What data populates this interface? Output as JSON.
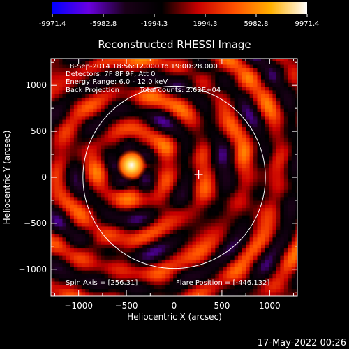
{
  "chart_data": {
    "type": "heatmap",
    "title": "Reconstructed RHESSI Image",
    "xlabel": "Heliocentric X (arcsec)",
    "ylabel": "Heliocentric Y (arcsec)",
    "xlim": [
      -1290,
      1290
    ],
    "ylim": [
      -1290,
      1290
    ],
    "xticks": [
      -1000,
      -500,
      0,
      500,
      1000
    ],
    "yticks": [
      -1000,
      -500,
      0,
      500,
      1000
    ],
    "colorbar": {
      "min": -9971.4,
      "max": 9971.4,
      "tick_values": [
        -9971.4,
        -5982.8,
        -1994.3,
        1994.3,
        5982.8,
        9971.4
      ],
      "tick_labels": [
        "-9971.4",
        "-5982.8",
        "-1994.3",
        "1994.3",
        "5982.8",
        "9971.4"
      ],
      "colors": [
        "#0000ff",
        "#6a00e0",
        "#1a0018",
        "#000000",
        "#c80000",
        "#ff5000",
        "#ffb000",
        "#ffffff"
      ]
    },
    "info_lines": [
      "8-Sep-2014 18:56:12.000 to 19:00:28.000",
      "Detectors: 7F 8F 9F, Att 0",
      "Energy Range: 6.0 - 12.0 keV"
    ],
    "method": "Back Projection",
    "total_counts": "Total counts: 2.62E+04",
    "spin_axis": "Spin Axis = [256,31]",
    "flare_position": "Flare Position = [-446,132]",
    "solar_limb": {
      "center": [
        0,
        0
      ],
      "radius": 955
    },
    "spin_axis_marker": [
      256,
      31
    ],
    "source_peak": [
      -446,
      132
    ]
  },
  "timestamp": "17-May-2022 00:26"
}
